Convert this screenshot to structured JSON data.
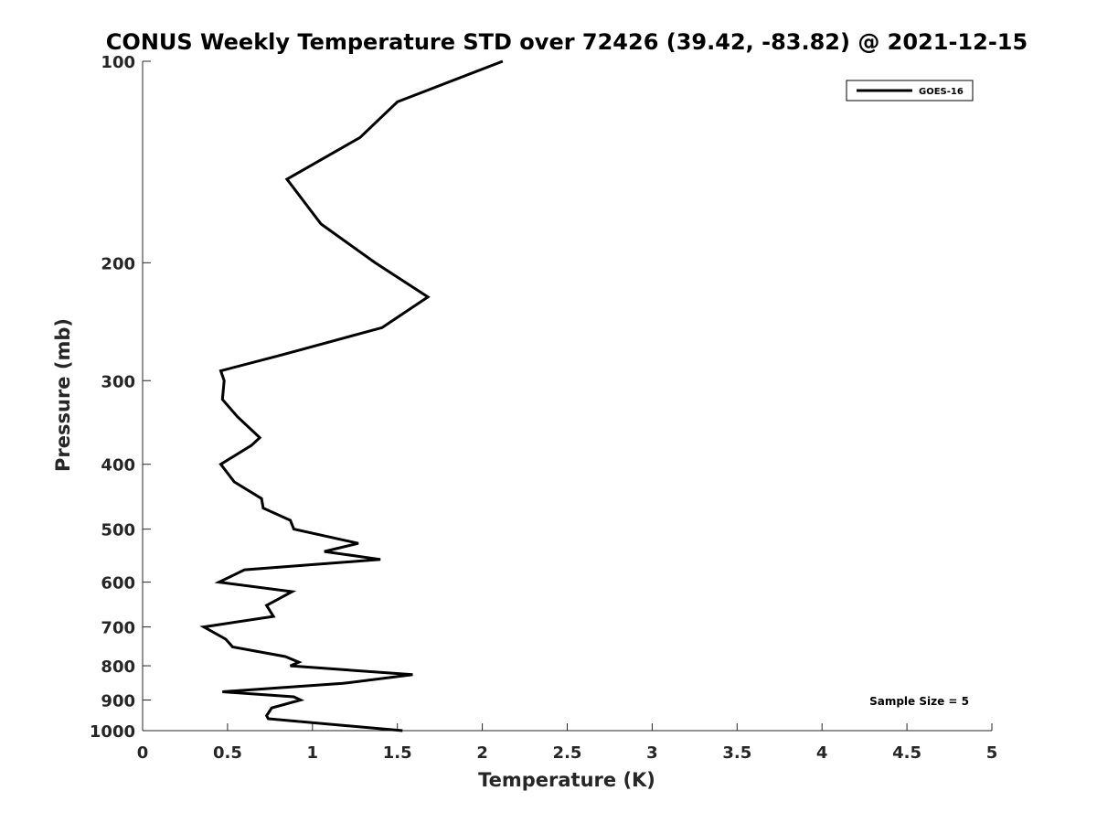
{
  "chart_data": {
    "type": "line",
    "title": "CONUS Weekly Temperature STD over 72426 (39.42, -83.82) @ 2021-12-15",
    "xlabel": "Temperature (K)",
    "ylabel": "Pressure (mb)",
    "xlim": [
      0,
      5
    ],
    "ylim": [
      100,
      1000
    ],
    "y_scale": "log",
    "y_reversed": true,
    "x_ticks": [
      "0",
      "0.5",
      "1",
      "1.5",
      "2",
      "2.5",
      "3",
      "3.5",
      "4",
      "4.5",
      "5"
    ],
    "y_ticks": [
      "100",
      "200",
      "300",
      "400",
      "500",
      "600",
      "700",
      "800",
      "900",
      "1000"
    ],
    "grid": false,
    "legend": {
      "position": "top-right",
      "entries": [
        "GOES-16"
      ]
    },
    "annotation": "Sample Size = 5",
    "series": [
      {
        "name": "GOES-16",
        "color": "#000000",
        "points": [
          [
            2.12,
            100
          ],
          [
            1.5,
            115
          ],
          [
            1.28,
            130
          ],
          [
            0.85,
            150
          ],
          [
            1.05,
            175
          ],
          [
            1.37,
            200
          ],
          [
            1.68,
            225
          ],
          [
            1.41,
            250
          ],
          [
            0.81,
            275
          ],
          [
            0.46,
            290
          ],
          [
            0.48,
            300
          ],
          [
            0.47,
            320
          ],
          [
            0.56,
            340
          ],
          [
            0.69,
            365
          ],
          [
            0.64,
            375
          ],
          [
            0.46,
            400
          ],
          [
            0.54,
            425
          ],
          [
            0.7,
            450
          ],
          [
            0.71,
            465
          ],
          [
            0.87,
            485
          ],
          [
            0.89,
            500
          ],
          [
            1.27,
            525
          ],
          [
            1.07,
            540
          ],
          [
            1.4,
            555
          ],
          [
            0.6,
            575
          ],
          [
            0.45,
            600
          ],
          [
            0.88,
            620
          ],
          [
            0.78,
            640
          ],
          [
            0.73,
            650
          ],
          [
            0.77,
            675
          ],
          [
            0.36,
            700
          ],
          [
            0.49,
            730
          ],
          [
            0.53,
            750
          ],
          [
            0.84,
            775
          ],
          [
            0.92,
            790
          ],
          [
            0.87,
            800
          ],
          [
            1.59,
            825
          ],
          [
            1.18,
            850
          ],
          [
            0.47,
            875
          ],
          [
            0.89,
            890
          ],
          [
            0.93,
            900
          ],
          [
            0.76,
            925
          ],
          [
            0.73,
            950
          ],
          [
            0.74,
            960
          ],
          [
            1.53,
            1000
          ]
        ]
      }
    ]
  }
}
